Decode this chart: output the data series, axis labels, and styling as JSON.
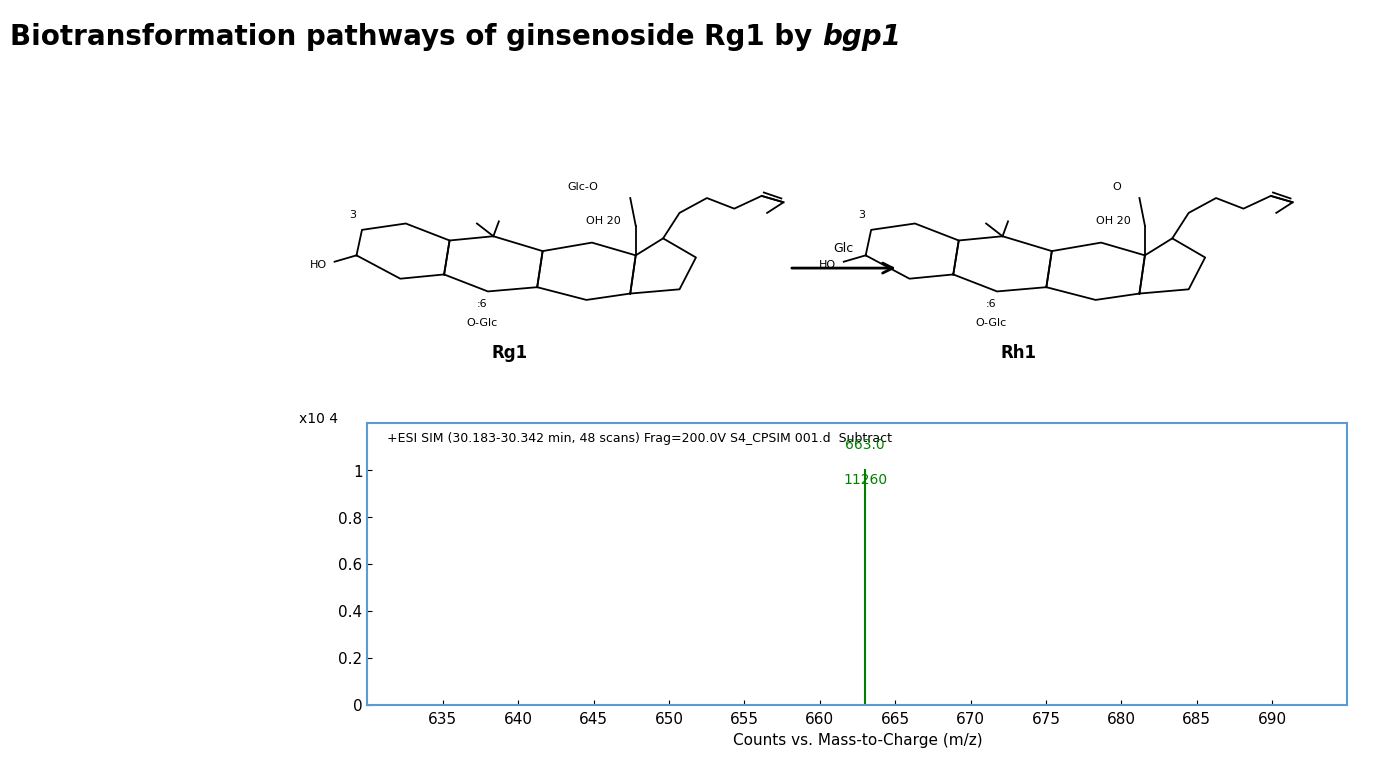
{
  "title_main": "Biotransformation pathways of ginsenoside Rg1 by ",
  "title_italic": "bgp1",
  "spectrum_annotation": "+ESI SIM (30.183-30.342 min, 48 scans) Frag=200.0V S4_CPSIM 001.d  Subtract",
  "peak_mz": 663.0,
  "peak_label_mz": "663.0",
  "peak_label_counts": "11260",
  "peak_color": "#008000",
  "xmin": 630,
  "xmax": 695,
  "xticks": [
    635,
    640,
    645,
    650,
    655,
    660,
    665,
    670,
    675,
    680,
    685,
    690
  ],
  "ymin": 0,
  "ymax": 1.2,
  "yticks": [
    0,
    0.2,
    0.4,
    0.6,
    0.8,
    1.0
  ],
  "ylabel_left": "x10 4",
  "xlabel": "Counts vs. Mass-to-Charge (m/z)",
  "background_color": "#ffffff",
  "plot_bg_color": "#ffffff",
  "border_color": "#5b9bd5",
  "annotation_color": "#000000",
  "peak_line_color": "#008000",
  "axis_label_fontsize": 11,
  "tick_fontsize": 11,
  "title_fontsize": 20
}
